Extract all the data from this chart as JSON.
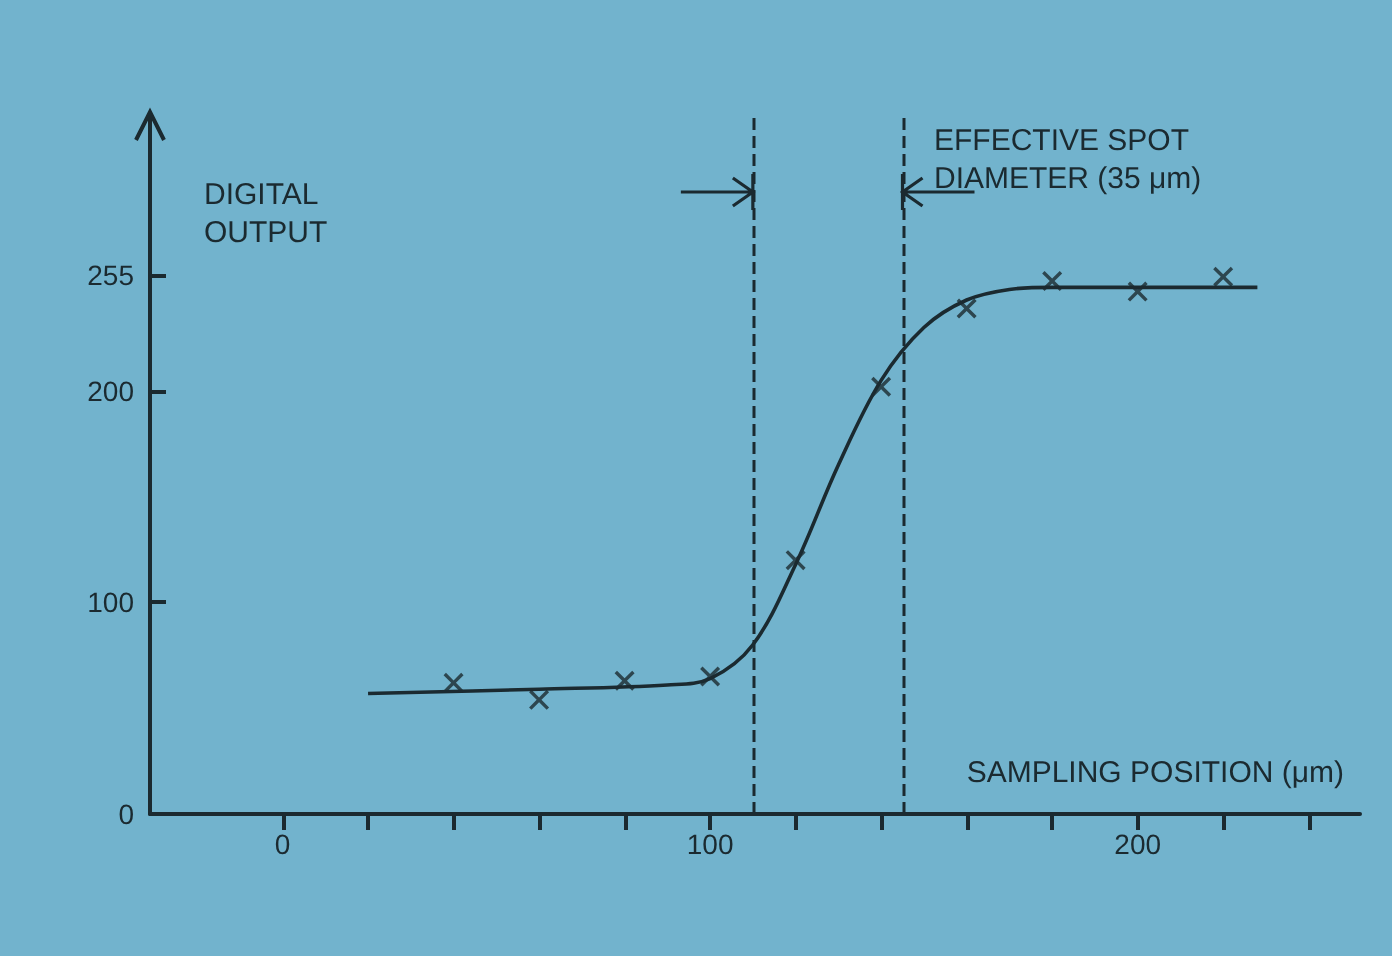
{
  "chart_data": {
    "type": "scatter",
    "xlabel": "SAMPLING POSITION (μm)",
    "ylabel": "DIGITAL OUTPUT",
    "xlim": [
      -31,
      252
    ],
    "ylim": [
      0,
      330
    ],
    "xticks": [
      {
        "value": 0,
        "label": "0"
      },
      {
        "value": 20,
        "label": null
      },
      {
        "value": 40,
        "label": null
      },
      {
        "value": 60,
        "label": null
      },
      {
        "value": 80,
        "label": null
      },
      {
        "value": 100,
        "label": "100"
      },
      {
        "value": 120,
        "label": null
      },
      {
        "value": 140,
        "label": null
      },
      {
        "value": 160,
        "label": null
      },
      {
        "value": 180,
        "label": null
      },
      {
        "value": 200,
        "label": "200"
      },
      {
        "value": 220,
        "label": null
      },
      {
        "value": 240,
        "label": null
      }
    ],
    "yticks": [
      0,
      100,
      200,
      255
    ],
    "grid": false,
    "series": [
      {
        "marker": "cross",
        "color": "#1b2a30",
        "x": [
          40,
          60,
          80,
          100,
          120,
          140,
          160,
          180,
          200,
          220
        ],
        "values": [
          62,
          54,
          63,
          65,
          120,
          202,
          239,
          252,
          247,
          254
        ]
      },
      {
        "type": "line",
        "marker": "none",
        "line_style": "solid",
        "color": "#1b2a30",
        "x": [
          20,
          60,
          90,
          100,
          110,
          120,
          130,
          140,
          150,
          160,
          170,
          180,
          228
        ],
        "values": [
          57,
          59,
          61,
          64,
          80,
          118,
          165,
          205,
          230,
          243,
          248,
          249,
          249
        ]
      }
    ],
    "ref_lines": [
      {
        "axis": "x",
        "value": 110,
        "line_style": "dashed",
        "color": "#1b2a30"
      },
      {
        "axis": "x",
        "value": 145,
        "line_style": "dashed",
        "color": "#1b2a30"
      }
    ],
    "annotations": [
      "EFFECTIVE SPOT DIAMETER (35 μm)"
    ]
  }
}
